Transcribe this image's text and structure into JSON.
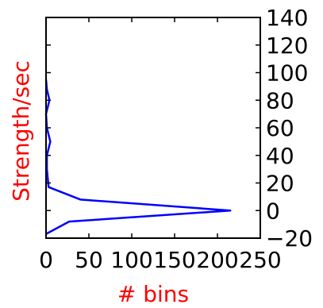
{
  "chart_data": {
    "type": "line",
    "orientation": "horizontal",
    "xlabel": "# bins",
    "ylabel": "Strength/sec",
    "xlim": [
      0,
      250
    ],
    "ylim": [
      -20,
      140
    ],
    "xticks": [
      0,
      50,
      100,
      150,
      200,
      250
    ],
    "yticks": [
      -20,
      0,
      20,
      40,
      60,
      80,
      100,
      120,
      140
    ],
    "y_tick_side": "right",
    "grid": false,
    "label_color": "#ff0000",
    "series": [
      {
        "color": "#0000ff",
        "points": [
          {
            "x": 0,
            "y": -17
          },
          {
            "x": 27,
            "y": -8
          },
          {
            "x": 215,
            "y": 0
          },
          {
            "x": 40,
            "y": 8
          },
          {
            "x": 3,
            "y": 17
          },
          {
            "x": 1,
            "y": 30
          },
          {
            "x": 1,
            "y": 40
          },
          {
            "x": 5,
            "y": 50
          },
          {
            "x": 1,
            "y": 60
          },
          {
            "x": 0,
            "y": 70
          },
          {
            "x": 4,
            "y": 80
          },
          {
            "x": 1,
            "y": 88
          },
          {
            "x": 0,
            "y": 95
          }
        ]
      }
    ]
  }
}
